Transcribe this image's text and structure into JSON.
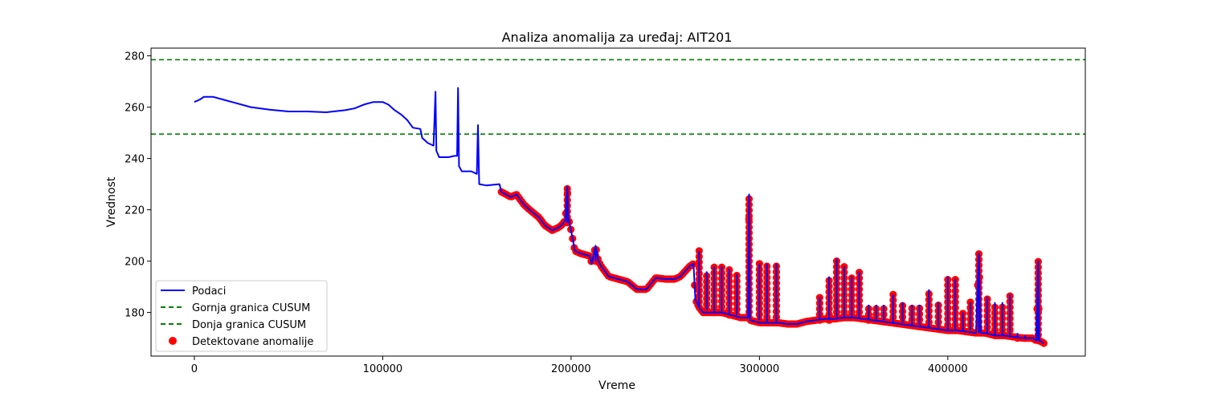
{
  "chart_data": {
    "type": "line",
    "title": "Analiza anomalija za uređaj: AIT201",
    "xlabel": "Vreme",
    "ylabel": "Vrednost",
    "xlim": [
      -23000,
      473000
    ],
    "ylim": [
      163,
      283
    ],
    "x_ticks": [
      0,
      100000,
      200000,
      300000,
      400000
    ],
    "y_ticks": [
      180,
      200,
      220,
      240,
      260,
      280
    ],
    "x_tick_labels": [
      "0",
      "100000",
      "200000",
      "300000",
      "400000"
    ],
    "y_tick_labels": [
      "180",
      "200",
      "220",
      "240",
      "260",
      "280"
    ],
    "grid": false,
    "legend_position": "lower-left",
    "colors": {
      "data": "#0000ff",
      "threshold": "#008000",
      "anomaly": "#ff0000"
    },
    "series": [
      {
        "name": "Podaci",
        "kind": "line",
        "points": [
          [
            0,
            262
          ],
          [
            3000,
            263
          ],
          [
            5000,
            264
          ],
          [
            10000,
            264
          ],
          [
            15000,
            263
          ],
          [
            20000,
            262
          ],
          [
            30000,
            260
          ],
          [
            40000,
            259
          ],
          [
            50000,
            258.3
          ],
          [
            60000,
            258.3
          ],
          [
            70000,
            258
          ],
          [
            80000,
            258.8
          ],
          [
            85000,
            259.5
          ],
          [
            90000,
            261
          ],
          [
            95000,
            262
          ],
          [
            100000,
            262
          ],
          [
            103000,
            261
          ],
          [
            106000,
            259
          ],
          [
            110000,
            257
          ],
          [
            113000,
            255
          ],
          [
            116000,
            252
          ],
          [
            120000,
            251.5
          ],
          [
            121000,
            248
          ],
          [
            124000,
            246
          ],
          [
            127000,
            245
          ],
          [
            128000,
            266
          ],
          [
            128500,
            243
          ],
          [
            130000,
            240.5
          ],
          [
            135000,
            240.5
          ],
          [
            138000,
            241
          ],
          [
            139500,
            241
          ],
          [
            140000,
            267.5
          ],
          [
            140500,
            237
          ],
          [
            142000,
            235
          ],
          [
            147000,
            235
          ],
          [
            150000,
            234
          ],
          [
            150600,
            253
          ],
          [
            151200,
            230
          ],
          [
            155000,
            229.5
          ],
          [
            162000,
            230
          ],
          [
            163000,
            227
          ],
          [
            168000,
            225
          ],
          [
            171000,
            226
          ],
          [
            175000,
            222
          ],
          [
            178000,
            220
          ],
          [
            183000,
            217
          ],
          [
            186000,
            214
          ],
          [
            190000,
            212
          ],
          [
            193000,
            213
          ],
          [
            195000,
            214
          ],
          [
            197000,
            216
          ],
          [
            198000,
            229
          ],
          [
            198500,
            217
          ],
          [
            200000,
            212
          ],
          [
            202000,
            204
          ],
          [
            205000,
            203
          ],
          [
            210000,
            202
          ],
          [
            211000,
            199
          ],
          [
            213000,
            206
          ],
          [
            214500,
            200
          ],
          [
            216000,
            198
          ],
          [
            220000,
            194
          ],
          [
            225000,
            193
          ],
          [
            230000,
            192
          ],
          [
            235000,
            189
          ],
          [
            240000,
            189
          ],
          [
            245000,
            193.5
          ],
          [
            250000,
            193
          ],
          [
            255000,
            193
          ],
          [
            258000,
            194
          ],
          [
            263000,
            198
          ],
          [
            265000,
            199
          ],
          [
            266000,
            185
          ],
          [
            268000,
            182
          ],
          [
            270000,
            180
          ],
          [
            275000,
            180
          ],
          [
            280000,
            180
          ],
          [
            285000,
            179
          ],
          [
            290000,
            178
          ],
          [
            294000,
            178
          ],
          [
            294500,
            226
          ],
          [
            295000,
            177
          ],
          [
            300000,
            176
          ],
          [
            305000,
            176
          ],
          [
            310000,
            176
          ],
          [
            315000,
            175.5
          ],
          [
            320000,
            175.5
          ],
          [
            325000,
            176.5
          ],
          [
            330000,
            177
          ],
          [
            335000,
            177.5
          ],
          [
            340000,
            177.5
          ],
          [
            345000,
            178
          ],
          [
            350000,
            178
          ],
          [
            355000,
            177.5
          ],
          [
            360000,
            177
          ],
          [
            365000,
            176.5
          ],
          [
            370000,
            176
          ],
          [
            375000,
            175.5
          ],
          [
            380000,
            175
          ],
          [
            385000,
            174.5
          ],
          [
            390000,
            174
          ],
          [
            395000,
            173.5
          ],
          [
            400000,
            173
          ],
          [
            405000,
            173
          ],
          [
            410000,
            172.5
          ],
          [
            415000,
            172
          ],
          [
            416500,
            203
          ],
          [
            417500,
            172
          ],
          [
            420000,
            172
          ],
          [
            425000,
            171
          ],
          [
            430000,
            171
          ],
          [
            435000,
            170.5
          ],
          [
            440000,
            170
          ],
          [
            445000,
            170
          ],
          [
            447000,
            169
          ],
          [
            448000,
            200
          ],
          [
            448500,
            169
          ],
          [
            450000,
            168.5
          ],
          [
            451000,
            168
          ]
        ]
      },
      {
        "name": "Gornja granica CUSUM",
        "kind": "hline",
        "y": 278.5
      },
      {
        "name": "Donja granica CUSUM",
        "kind": "hline",
        "y": 249.5
      },
      {
        "name": "Detektovane anomalije",
        "kind": "scatter",
        "x_start": 163000,
        "x_end": 451000
      }
    ],
    "spikes": [
      {
        "x": 198000,
        "from": 215,
        "to": 229
      },
      {
        "x": 213000,
        "from": 200,
        "to": 206
      },
      {
        "x": 268000,
        "from": 182,
        "to": 204
      },
      {
        "x": 272000,
        "from": 181,
        "to": 196
      },
      {
        "x": 276000,
        "from": 180,
        "to": 198
      },
      {
        "x": 280000,
        "from": 180,
        "to": 198
      },
      {
        "x": 284000,
        "from": 179,
        "to": 197
      },
      {
        "x": 288000,
        "from": 179,
        "to": 195
      },
      {
        "x": 294500,
        "from": 178,
        "to": 226
      },
      {
        "x": 300000,
        "from": 177,
        "to": 199
      },
      {
        "x": 304000,
        "from": 176,
        "to": 199
      },
      {
        "x": 309000,
        "from": 176,
        "to": 199
      },
      {
        "x": 332000,
        "from": 177,
        "to": 186
      },
      {
        "x": 337000,
        "from": 177,
        "to": 194
      },
      {
        "x": 341000,
        "from": 178,
        "to": 201
      },
      {
        "x": 345000,
        "from": 178,
        "to": 198
      },
      {
        "x": 349000,
        "from": 178,
        "to": 194
      },
      {
        "x": 353000,
        "from": 178,
        "to": 196
      },
      {
        "x": 358000,
        "from": 177,
        "to": 183
      },
      {
        "x": 362000,
        "from": 177,
        "to": 183
      },
      {
        "x": 366000,
        "from": 177,
        "to": 183
      },
      {
        "x": 371000,
        "from": 176,
        "to": 187
      },
      {
        "x": 376000,
        "from": 176,
        "to": 184
      },
      {
        "x": 381000,
        "from": 175,
        "to": 183
      },
      {
        "x": 385000,
        "from": 175,
        "to": 183
      },
      {
        "x": 390000,
        "from": 174,
        "to": 189
      },
      {
        "x": 395000,
        "from": 174,
        "to": 184
      },
      {
        "x": 400000,
        "from": 173,
        "to": 194
      },
      {
        "x": 404000,
        "from": 173,
        "to": 193
      },
      {
        "x": 408000,
        "from": 173,
        "to": 180
      },
      {
        "x": 412000,
        "from": 173,
        "to": 184
      },
      {
        "x": 416500,
        "from": 172,
        "to": 203
      },
      {
        "x": 421000,
        "from": 172,
        "to": 186
      },
      {
        "x": 425000,
        "from": 171,
        "to": 184
      },
      {
        "x": 429000,
        "from": 171,
        "to": 184
      },
      {
        "x": 433000,
        "from": 171,
        "to": 187
      },
      {
        "x": 437000,
        "from": 170,
        "to": 172
      },
      {
        "x": 441000,
        "from": 170,
        "to": 171
      },
      {
        "x": 448000,
        "from": 169,
        "to": 200
      }
    ]
  }
}
